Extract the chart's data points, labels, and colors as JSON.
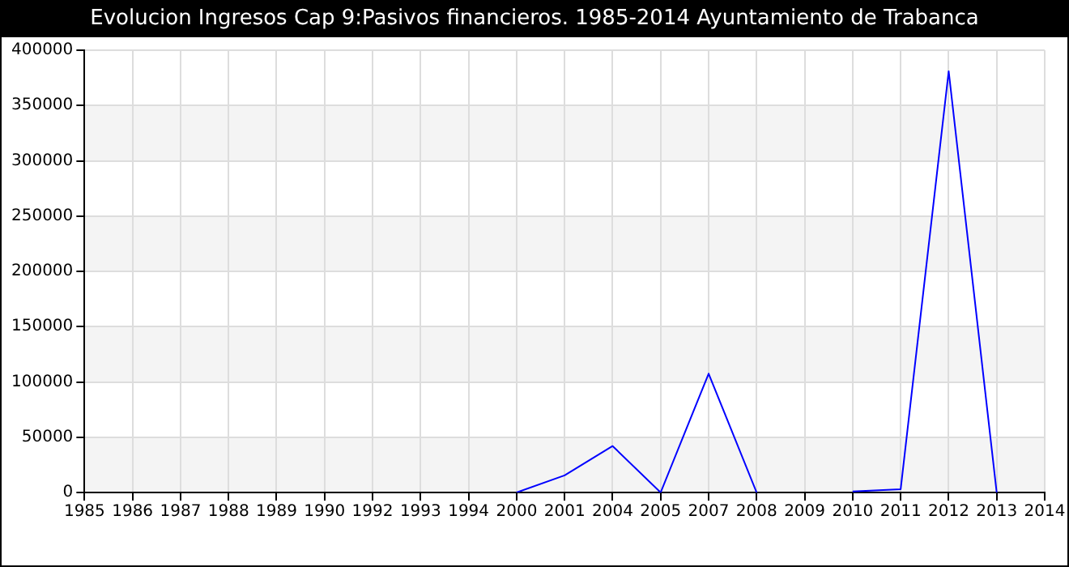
{
  "chart_data": {
    "type": "line",
    "title": "Evolucion Ingresos Cap 9:Pasivos financieros. 1985-2014 Ayuntamiento de Trabanca",
    "categories": [
      "1985",
      "1986",
      "1987",
      "1988",
      "1989",
      "1990",
      "1992",
      "1993",
      "1994",
      "2000",
      "2001",
      "2004",
      "2005",
      "2007",
      "2008",
      "2009",
      "2010",
      "2011",
      "2012",
      "2013",
      "2014"
    ],
    "series": [
      {
        "color": "#0000ff",
        "values": [
          null,
          null,
          null,
          null,
          null,
          null,
          null,
          null,
          null,
          0,
          15500,
          42000,
          0,
          107500,
          0,
          null,
          1000,
          3000,
          381000,
          0,
          null
        ]
      }
    ],
    "ylim": [
      0,
      400000
    ],
    "yticks": [
      0,
      50000,
      100000,
      150000,
      200000,
      250000,
      300000,
      350000,
      400000
    ],
    "grid": true,
    "legend": false,
    "marker": "none",
    "line_style": "solid"
  }
}
